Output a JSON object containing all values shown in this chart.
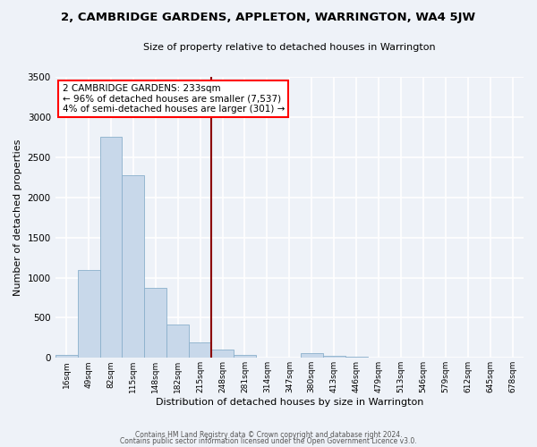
{
  "title": "2, CAMBRIDGE GARDENS, APPLETON, WARRINGTON, WA4 5JW",
  "subtitle": "Size of property relative to detached houses in Warrington",
  "xlabel": "Distribution of detached houses by size in Warrington",
  "ylabel": "Number of detached properties",
  "bar_color": "#c8d8ea",
  "bar_edge_color": "#8ab0cc",
  "background_color": "#eef2f8",
  "grid_color": "white",
  "annotation_box_title": "2 CAMBRIDGE GARDENS: 233sqm",
  "annotation_line1": "← 96% of detached houses are smaller (7,537)",
  "annotation_line2": "4% of semi-detached houses are larger (301) →",
  "marker_color": "#8b0000",
  "categories": [
    "16sqm",
    "49sqm",
    "82sqm",
    "115sqm",
    "148sqm",
    "182sqm",
    "215sqm",
    "248sqm",
    "281sqm",
    "314sqm",
    "347sqm",
    "380sqm",
    "413sqm",
    "446sqm",
    "479sqm",
    "513sqm",
    "546sqm",
    "579sqm",
    "612sqm",
    "645sqm",
    "678sqm"
  ],
  "values": [
    40,
    1100,
    2750,
    2280,
    870,
    415,
    190,
    100,
    40,
    0,
    0,
    55,
    30,
    10,
    0,
    0,
    0,
    0,
    0,
    0,
    0
  ],
  "ylim": [
    0,
    3500
  ],
  "yticks": [
    0,
    500,
    1000,
    1500,
    2000,
    2500,
    3000,
    3500
  ],
  "marker_bin_index": 7,
  "footer1": "Contains HM Land Registry data © Crown copyright and database right 2024.",
  "footer2": "Contains public sector information licensed under the Open Government Licence v3.0."
}
